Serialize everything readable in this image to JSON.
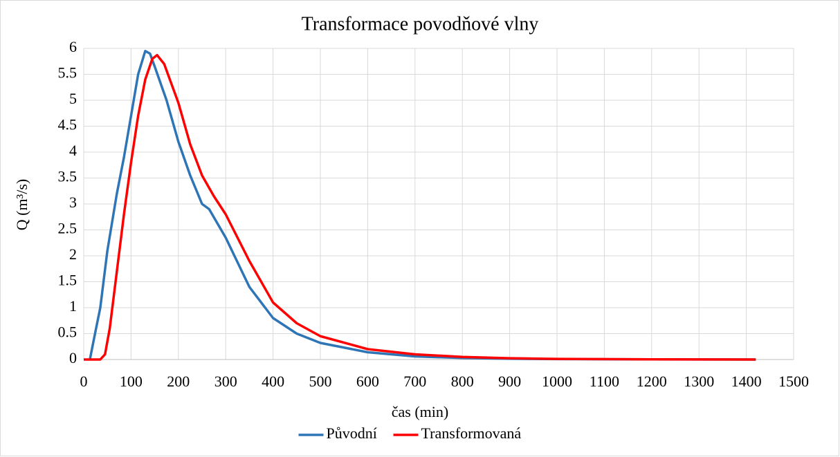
{
  "chart_data": {
    "type": "line",
    "title": "Transformace povodňové vlny",
    "xlabel": "čas (min)",
    "ylabel": "Q (m³/s)",
    "xlim": [
      0,
      1500
    ],
    "xticks": [
      0,
      100,
      200,
      300,
      400,
      500,
      600,
      700,
      800,
      900,
      1000,
      1100,
      1200,
      1300,
      1400,
      1500
    ],
    "ylim": [
      0,
      6
    ],
    "yticks": [
      0,
      0.5,
      1,
      1.5,
      2,
      2.5,
      3,
      3.5,
      4,
      4.5,
      5,
      5.5,
      6
    ],
    "grid": true,
    "legend": "bottom",
    "series": [
      {
        "name": "Původní",
        "color": "#2e75b6",
        "x": [
          13,
          25,
          35,
          50,
          70,
          85,
          100,
          115,
          130,
          140,
          150,
          175,
          200,
          225,
          250,
          265,
          300,
          350,
          400,
          450,
          500,
          600,
          700,
          800,
          900,
          1000,
          1200,
          1420
        ],
        "values": [
          0,
          0.55,
          1.0,
          2.1,
          3.2,
          3.9,
          4.7,
          5.5,
          5.95,
          5.9,
          5.65,
          5.0,
          4.2,
          3.55,
          3.0,
          2.9,
          2.35,
          1.4,
          0.8,
          0.5,
          0.32,
          0.14,
          0.06,
          0.03,
          0.015,
          0.008,
          0.003,
          0
        ]
      },
      {
        "name": "Transformovaná",
        "color": "#ff0000",
        "x": [
          0,
          35,
          45,
          55,
          70,
          85,
          100,
          115,
          130,
          145,
          155,
          170,
          200,
          225,
          250,
          275,
          300,
          350,
          400,
          450,
          500,
          600,
          700,
          800,
          900,
          1000,
          1200,
          1420
        ],
        "values": [
          0,
          0,
          0.1,
          0.6,
          1.7,
          2.8,
          3.8,
          4.7,
          5.4,
          5.8,
          5.87,
          5.7,
          4.95,
          4.15,
          3.55,
          3.15,
          2.8,
          1.9,
          1.1,
          0.7,
          0.45,
          0.2,
          0.1,
          0.05,
          0.025,
          0.012,
          0.004,
          0
        ]
      }
    ]
  }
}
